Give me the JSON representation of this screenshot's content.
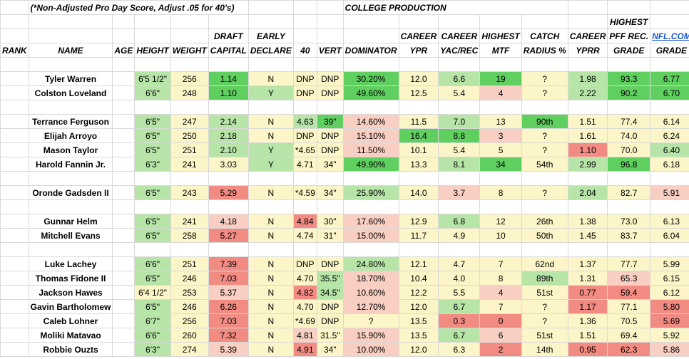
{
  "header": {
    "note": "(*Non-Adjusted Pro Day Score, Adjust .05 for 40's)",
    "college_production": "COLLEGE PRODUCTION",
    "rank": "RANK",
    "name": "NAME",
    "age": "AGE",
    "height": "HEIGHT",
    "weight": "WEIGHT",
    "draft_1": "DRAFT",
    "draft_2": "CAPITAL",
    "early_1": "EARLY",
    "early_2": "DECLARE",
    "forty": "40",
    "vert": "VERT",
    "dominator": "DOMINATOR",
    "ypr_1": "CAREER",
    "ypr_2": "YPR",
    "yac_1": "CAREER",
    "yac_2": "YAC/REC",
    "mtf_1": "HIGHEST",
    "mtf_2": "MTF",
    "catch_1": "CATCH",
    "catch_2": "RADIUS %",
    "yprr_1": "CAREER",
    "yprr_2": "YPRR",
    "pff_0": "HIGHEST",
    "pff_1": "PFF REC.",
    "pff_2": "GRADE",
    "nfl_1": "NFL.COM",
    "nfl_2": "GRADE"
  },
  "colors": {
    "strong_green": "#5fcf5f",
    "light_green": "#b7e4a7",
    "light_yellow": "#fcf5c7",
    "light_red": "#f8cfc2",
    "red": "#f28b82",
    "link_blue": "#1a55d6"
  },
  "players": [
    {
      "name": "Tyler Warren",
      "height": "6'5 1/2\"",
      "weight": "256",
      "draft": "1.14",
      "early": "N",
      "forty": "DNP",
      "vert": "DNP",
      "dom": "30.20%",
      "ypr": "12.0",
      "yac": "6.6",
      "mtf": "19",
      "catch": "?",
      "yprr": "1.98",
      "pff": "93.3",
      "nfl": "6.77"
    },
    {
      "name": "Colston Loveland",
      "height": "6'6\"",
      "weight": "248",
      "draft": "1.10",
      "early": "Y",
      "forty": "DNP",
      "vert": "DNP",
      "dom": "49.60%",
      "ypr": "12.5",
      "yac": "5.4",
      "mtf": "4",
      "catch": "?",
      "yprr": "2.22",
      "pff": "90.2",
      "nfl": "6.70"
    },
    {
      "name": "Terrance Ferguson",
      "height": "6'5\"",
      "weight": "247",
      "draft": "2.14",
      "early": "N",
      "forty": "4.63",
      "vert": "39\"",
      "dom": "14.60%",
      "ypr": "11.5",
      "yac": "7.0",
      "mtf": "13",
      "catch": "90th",
      "yprr": "1.51",
      "pff": "77.4",
      "nfl": "6.14"
    },
    {
      "name": "Elijah Arroyo",
      "height": "6'5\"",
      "weight": "250",
      "draft": "2.18",
      "early": "N",
      "forty": "DNP",
      "vert": "DNP",
      "dom": "15.10%",
      "ypr": "16.4",
      "yac": "8.8",
      "mtf": "3",
      "catch": "?",
      "yprr": "1.61",
      "pff": "74.0",
      "nfl": "6.24"
    },
    {
      "name": "Mason Taylor",
      "height": "6'5\"",
      "weight": "251",
      "draft": "2.10",
      "early": "Y",
      "forty": "*4.65",
      "vert": "DNP",
      "dom": "11.50%",
      "ypr": "10.1",
      "yac": "5.4",
      "mtf": "5",
      "catch": "?",
      "yprr": "1.10",
      "pff": "70.0",
      "nfl": "6.40"
    },
    {
      "name": "Harold Fannin Jr.",
      "height": "6'3\"",
      "weight": "241",
      "draft": "3.03",
      "early": "Y",
      "forty": "4.71",
      "vert": "34\"",
      "dom": "49.90%",
      "ypr": "13.3",
      "yac": "8.1",
      "mtf": "34",
      "catch": "54th",
      "yprr": "2.99",
      "pff": "96.8",
      "nfl": "6.18"
    },
    {
      "name": "Oronde Gadsden II",
      "height": "6'5\"",
      "weight": "243",
      "draft": "5.29",
      "early": "N",
      "forty": "*4.59",
      "vert": "34\"",
      "dom": "25.90%",
      "ypr": "14.0",
      "yac": "3.7",
      "mtf": "8",
      "catch": "?",
      "yprr": "2.04",
      "pff": "82.7",
      "nfl": "5.91"
    },
    {
      "name": "Gunnar Helm",
      "height": "6'5\"",
      "weight": "241",
      "draft": "4.18",
      "early": "N",
      "forty": "4.84",
      "vert": "30\"",
      "dom": "17.60%",
      "ypr": "12.9",
      "yac": "6.8",
      "mtf": "12",
      "catch": "26th",
      "yprr": "1.38",
      "pff": "73.0",
      "nfl": "6.13"
    },
    {
      "name": "Mitchell Evans",
      "height": "6'5\"",
      "weight": "258",
      "draft": "5.27",
      "early": "N",
      "forty": "4.74",
      "vert": "31\"",
      "dom": "15.00%",
      "ypr": "11.7",
      "yac": "4.9",
      "mtf": "10",
      "catch": "50th",
      "yprr": "1.45",
      "pff": "83.7",
      "nfl": "6.04"
    },
    {
      "name": "Luke Lachey",
      "height": "6'6\"",
      "weight": "251",
      "draft": "7.39",
      "early": "N",
      "forty": "DNP",
      "vert": "DNP",
      "dom": "24.80%",
      "ypr": "12.1",
      "yac": "4.7",
      "mtf": "7",
      "catch": "62nd",
      "yprr": "1.37",
      "pff": "77.7",
      "nfl": "5.99"
    },
    {
      "name": "Thomas Fidone II",
      "height": "6'5\"",
      "weight": "246",
      "draft": "7.03",
      "early": "N",
      "forty": "4.70",
      "vert": "35.5\"",
      "dom": "18.70%",
      "ypr": "10.4",
      "yac": "4.0",
      "mtf": "8",
      "catch": "89th",
      "yprr": "1.31",
      "pff": "65.3",
      "nfl": "6.15"
    },
    {
      "name": "Jackson Hawes",
      "height": "6'4 1/2\"",
      "weight": "253",
      "draft": "5.37",
      "early": "N",
      "forty": "4.82",
      "vert": "34.5\"",
      "dom": "10.60%",
      "ypr": "12.2",
      "yac": "5.5",
      "mtf": "4",
      "catch": "51st",
      "yprr": "0.77",
      "pff": "59.4",
      "nfl": "6.12"
    },
    {
      "name": "Gavin Bartholomew",
      "height": "6'5\"",
      "weight": "246",
      "draft": "6.26",
      "early": "N",
      "forty": "4.70",
      "vert": "DNP",
      "dom": "12.70%",
      "ypr": "12.0",
      "yac": "6.7",
      "mtf": "7",
      "catch": "?",
      "yprr": "1.17",
      "pff": "77.1",
      "nfl": "5.80"
    },
    {
      "name": "Caleb Lohner",
      "height": "6'7\"",
      "weight": "256",
      "draft": "7.03",
      "early": "N",
      "forty": "*4.69",
      "vert": "DNP",
      "dom": "?",
      "ypr": "13.5",
      "yac": "0.3",
      "mtf": "0",
      "catch": "?",
      "yprr": "1.36",
      "pff": "70.5",
      "nfl": "5.69"
    },
    {
      "name": "Moliki Matavao",
      "height": "6'6\"",
      "weight": "260",
      "draft": "7.32",
      "early": "N",
      "forty": "4.81",
      "vert": "31.5\"",
      "dom": "15.90%",
      "ypr": "13.5",
      "yac": "6.7",
      "mtf": "6",
      "catch": "51st",
      "yprr": "1.51",
      "pff": "69.4",
      "nfl": "5.92"
    },
    {
      "name": "Robbie Ouzts",
      "height": "6'3\"",
      "weight": "274",
      "draft": "5.39",
      "early": "N",
      "forty": "4.91",
      "vert": "34\"",
      "dom": "10.00%",
      "ypr": "12.0",
      "yac": "6.3",
      "mtf": "2",
      "catch": "14th",
      "yprr": "0.95",
      "pff": "62.3",
      "nfl": "5.86"
    }
  ]
}
